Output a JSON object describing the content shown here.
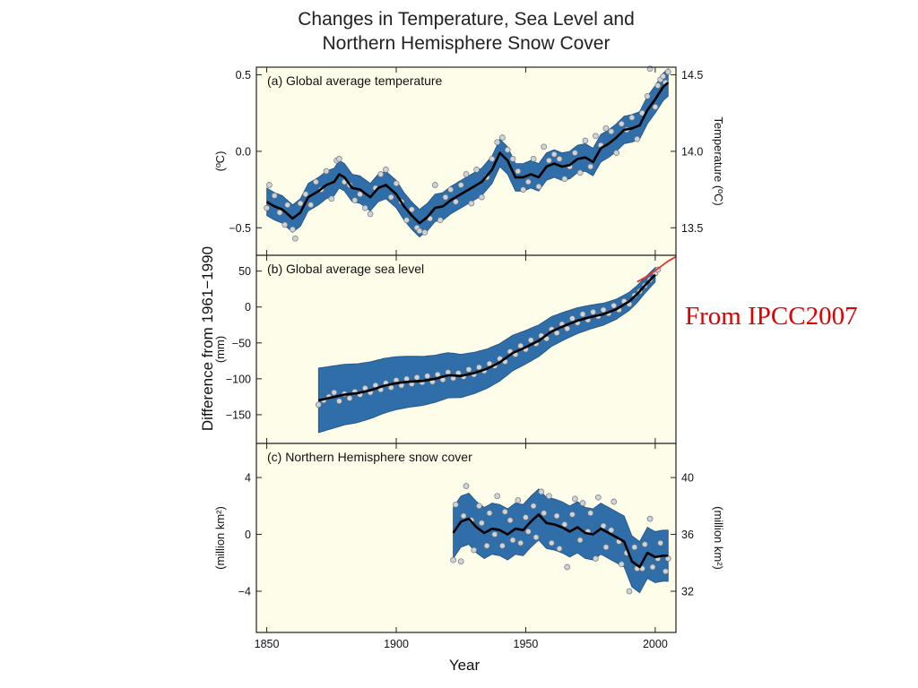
{
  "figure": {
    "title_line1": "Changes in Temperature, Sea Level and",
    "title_line2": "Northern Hemisphere Snow Cover",
    "shared_ylabel": "Difference from 1961−1990",
    "xlabel": "Year",
    "source_note": "From IPCC2007"
  },
  "colors": {
    "panel_bg": "#fdfde9",
    "band": "#2f6ea8",
    "band_edge": "#1f5184",
    "smooth_line": "#000000",
    "obs_point": "#cfd3d6",
    "tide_gauge_line": "#e8332e",
    "source_note": "#e00000"
  },
  "chart_data": [
    {
      "type": "line",
      "title": "(a) Global average temperature",
      "ylabel": "(ºC)",
      "ylabel_right": "Temperature (ºC)",
      "xlim": [
        1846,
        2008
      ],
      "ylim": [
        -0.68,
        0.55
      ],
      "x_ticks": [
        1850,
        1900,
        1950,
        2000
      ],
      "y_ticks": [
        0.5,
        0.0,
        -0.5
      ],
      "y_tick_labels": [
        "0.5",
        "0.0",
        "−0.5"
      ],
      "y_ticks_right": [
        14.5,
        14.0,
        13.5
      ],
      "y_tick_labels_right": [
        "14.5",
        "14.0",
        "13.5"
      ],
      "right_axis_offset": 14.0,
      "series": [
        {
          "role": "smoothed",
          "x": [
            1850,
            1853,
            1856,
            1860,
            1863,
            1866,
            1870,
            1873,
            1876,
            1878,
            1880,
            1883,
            1886,
            1890,
            1893,
            1896,
            1900,
            1903,
            1906,
            1909,
            1912,
            1915,
            1918,
            1921,
            1925,
            1929,
            1933,
            1937,
            1940,
            1943,
            1946,
            1949,
            1952,
            1955,
            1958,
            1961,
            1964,
            1967,
            1970,
            1973,
            1976,
            1979,
            1982,
            1985,
            1988,
            1991,
            1994,
            1997,
            2000,
            2003,
            2005
          ],
          "y": [
            -0.33,
            -0.36,
            -0.38,
            -0.44,
            -0.4,
            -0.3,
            -0.26,
            -0.22,
            -0.2,
            -0.15,
            -0.17,
            -0.24,
            -0.25,
            -0.3,
            -0.24,
            -0.22,
            -0.28,
            -0.36,
            -0.42,
            -0.47,
            -0.43,
            -0.37,
            -0.36,
            -0.32,
            -0.28,
            -0.24,
            -0.2,
            -0.12,
            -0.01,
            -0.06,
            -0.17,
            -0.17,
            -0.15,
            -0.17,
            -0.1,
            -0.08,
            -0.1,
            -0.09,
            -0.05,
            -0.04,
            -0.07,
            0.02,
            0.05,
            0.09,
            0.14,
            0.15,
            0.17,
            0.27,
            0.34,
            0.42,
            0.45
          ]
        }
      ],
      "uncertainty_halfwidth": 0.09,
      "observations": [
        [
          1850,
          -0.37
        ],
        [
          1851,
          -0.22
        ],
        [
          1853,
          -0.29
        ],
        [
          1855,
          -0.4
        ],
        [
          1857,
          -0.48
        ],
        [
          1858,
          -0.35
        ],
        [
          1860,
          -0.51
        ],
        [
          1861,
          -0.57
        ],
        [
          1863,
          -0.34
        ],
        [
          1865,
          -0.28
        ],
        [
          1867,
          -0.35
        ],
        [
          1869,
          -0.2
        ],
        [
          1871,
          -0.25
        ],
        [
          1873,
          -0.13
        ],
        [
          1875,
          -0.31
        ],
        [
          1877,
          -0.06
        ],
        [
          1878,
          -0.05
        ],
        [
          1880,
          -0.2
        ],
        [
          1882,
          -0.22
        ],
        [
          1884,
          -0.32
        ],
        [
          1886,
          -0.28
        ],
        [
          1888,
          -0.37
        ],
        [
          1890,
          -0.41
        ],
        [
          1892,
          -0.24
        ],
        [
          1894,
          -0.15
        ],
        [
          1896,
          -0.12
        ],
        [
          1898,
          -0.3
        ],
        [
          1900,
          -0.21
        ],
        [
          1902,
          -0.33
        ],
        [
          1904,
          -0.45
        ],
        [
          1906,
          -0.38
        ],
        [
          1908,
          -0.5
        ],
        [
          1909,
          -0.52
        ],
        [
          1911,
          -0.53
        ],
        [
          1913,
          -0.44
        ],
        [
          1915,
          -0.22
        ],
        [
          1917,
          -0.45
        ],
        [
          1919,
          -0.3
        ],
        [
          1921,
          -0.25
        ],
        [
          1923,
          -0.33
        ],
        [
          1925,
          -0.22
        ],
        [
          1927,
          -0.15
        ],
        [
          1929,
          -0.34
        ],
        [
          1931,
          -0.12
        ],
        [
          1933,
          -0.3
        ],
        [
          1935,
          -0.17
        ],
        [
          1937,
          -0.05
        ],
        [
          1939,
          0.06
        ],
        [
          1941,
          0.09
        ],
        [
          1943,
          0.01
        ],
        [
          1945,
          -0.05
        ],
        [
          1947,
          -0.13
        ],
        [
          1949,
          -0.25
        ],
        [
          1951,
          -0.2
        ],
        [
          1953,
          -0.05
        ],
        [
          1955,
          -0.23
        ],
        [
          1957,
          0.03
        ],
        [
          1959,
          -0.06
        ],
        [
          1961,
          -0.02
        ],
        [
          1963,
          -0.05
        ],
        [
          1965,
          -0.18
        ],
        [
          1967,
          -0.1
        ],
        [
          1969,
          -0.01
        ],
        [
          1971,
          -0.14
        ],
        [
          1973,
          0.07
        ],
        [
          1975,
          -0.1
        ],
        [
          1977,
          0.1
        ],
        [
          1979,
          0.04
        ],
        [
          1981,
          0.15
        ],
        [
          1983,
          0.13
        ],
        [
          1985,
          -0.01
        ],
        [
          1987,
          0.18
        ],
        [
          1989,
          0.14
        ],
        [
          1991,
          0.22
        ],
        [
          1993,
          0.08
        ],
        [
          1995,
          0.25
        ],
        [
          1997,
          0.36
        ],
        [
          1998,
          0.54
        ],
        [
          2000,
          0.29
        ],
        [
          2001,
          0.43
        ],
        [
          2002,
          0.47
        ],
        [
          2003,
          0.49
        ],
        [
          2004,
          0.45
        ],
        [
          2005,
          0.52
        ]
      ]
    },
    {
      "type": "line",
      "title": "(b) Global average sea level",
      "ylabel": "(mm)",
      "xlim": [
        1846,
        2008
      ],
      "ylim": [
        -190,
        72
      ],
      "x_ticks": [
        1850,
        1900,
        1950,
        2000
      ],
      "y_ticks": [
        50,
        0,
        -50,
        -100,
        -150
      ],
      "y_tick_labels": [
        "50",
        "0",
        "−50",
        "−100",
        "−150"
      ],
      "series": [
        {
          "role": "smoothed",
          "x": [
            1870,
            1875,
            1880,
            1885,
            1890,
            1895,
            1900,
            1905,
            1910,
            1915,
            1920,
            1925,
            1930,
            1935,
            1940,
            1945,
            1950,
            1955,
            1960,
            1965,
            1970,
            1975,
            1980,
            1985,
            1990,
            1993,
            1996,
            2000
          ],
          "y": [
            -130,
            -126,
            -122,
            -120,
            -116,
            -110,
            -106,
            -104,
            -103,
            -100,
            -95,
            -96,
            -92,
            -86,
            -77,
            -64,
            -56,
            -47,
            -34,
            -26,
            -19,
            -14,
            -10,
            -3,
            8,
            18,
            30,
            45
          ]
        },
        {
          "role": "satellite",
          "x": [
            1993,
            1996,
            1999,
            2002,
            2005,
            2008
          ],
          "y": [
            35,
            41,
            48,
            56,
            64,
            70
          ]
        }
      ],
      "uncertainty_start": 45,
      "uncertainty_end": 10,
      "observations": [
        [
          1870,
          -136
        ],
        [
          1872,
          -130
        ],
        [
          1874,
          -125
        ],
        [
          1876,
          -119
        ],
        [
          1878,
          -131
        ],
        [
          1880,
          -121
        ],
        [
          1882,
          -127
        ],
        [
          1884,
          -118
        ],
        [
          1886,
          -122
        ],
        [
          1888,
          -113
        ],
        [
          1890,
          -119
        ],
        [
          1892,
          -109
        ],
        [
          1894,
          -115
        ],
        [
          1896,
          -106
        ],
        [
          1898,
          -112
        ],
        [
          1900,
          -102
        ],
        [
          1902,
          -109
        ],
        [
          1904,
          -100
        ],
        [
          1906,
          -107
        ],
        [
          1908,
          -98
        ],
        [
          1910,
          -105
        ],
        [
          1912,
          -96
        ],
        [
          1914,
          -104
        ],
        [
          1916,
          -94
        ],
        [
          1918,
          -101
        ],
        [
          1920,
          -91
        ],
        [
          1922,
          -99
        ],
        [
          1924,
          -92
        ],
        [
          1926,
          -97
        ],
        [
          1928,
          -87
        ],
        [
          1930,
          -94
        ],
        [
          1932,
          -84
        ],
        [
          1934,
          -89
        ],
        [
          1936,
          -79
        ],
        [
          1938,
          -82
        ],
        [
          1940,
          -72
        ],
        [
          1942,
          -76
        ],
        [
          1944,
          -62
        ],
        [
          1946,
          -66
        ],
        [
          1948,
          -54
        ],
        [
          1950,
          -59
        ],
        [
          1952,
          -46
        ],
        [
          1954,
          -51
        ],
        [
          1956,
          -40
        ],
        [
          1958,
          -44
        ],
        [
          1960,
          -31
        ],
        [
          1962,
          -36
        ],
        [
          1964,
          -24
        ],
        [
          1966,
          -30
        ],
        [
          1968,
          -16
        ],
        [
          1970,
          -22
        ],
        [
          1972,
          -10
        ],
        [
          1974,
          -18
        ],
        [
          1976,
          -7
        ],
        [
          1978,
          -13
        ],
        [
          1980,
          -4
        ],
        [
          1982,
          -9
        ],
        [
          1984,
          2
        ],
        [
          1986,
          -4
        ],
        [
          1988,
          8
        ],
        [
          1990,
          4
        ],
        [
          1992,
          16
        ],
        [
          1994,
          22
        ],
        [
          1996,
          30
        ],
        [
          1998,
          38
        ],
        [
          2000,
          47
        ],
        [
          2001,
          52
        ]
      ]
    },
    {
      "type": "line",
      "title": "(c) Northern Hemisphere snow cover",
      "ylabel": "(million km²)",
      "ylabel_right": "(million km²)",
      "xlim": [
        1846,
        2008
      ],
      "ylim": [
        -6.9,
        6.4
      ],
      "x_ticks": [
        1850,
        1900,
        1950,
        2000
      ],
      "x_tick_labels": [
        "1850",
        "1900",
        "1950",
        "2000"
      ],
      "y_ticks": [
        4,
        0,
        -4
      ],
      "y_tick_labels": [
        "4",
        "0",
        "−4"
      ],
      "y_ticks_right": [
        40,
        36,
        32
      ],
      "y_tick_labels_right": [
        "40",
        "36",
        "32"
      ],
      "right_axis_offset": 36.0,
      "series": [
        {
          "role": "smoothed",
          "x": [
            1922,
            1925,
            1928,
            1931,
            1934,
            1937,
            1940,
            1943,
            1946,
            1949,
            1952,
            1955,
            1958,
            1961,
            1964,
            1967,
            1970,
            1973,
            1976,
            1979,
            1982,
            1985,
            1988,
            1991,
            1994,
            1997,
            2000,
            2003,
            2005
          ],
          "y": [
            0.1,
            0.9,
            1.1,
            0.5,
            0.1,
            0.4,
            0.3,
            0.0,
            0.4,
            0.3,
            0.9,
            1.4,
            0.8,
            0.7,
            0.5,
            0.2,
            0.5,
            0.1,
            0.0,
            0.4,
            0.1,
            -0.2,
            -0.5,
            -1.9,
            -2.3,
            -1.3,
            -1.6,
            -1.5,
            -1.5
          ]
        }
      ],
      "uncertainty_halfwidth": 1.8,
      "observations": [
        [
          1922,
          -1.8
        ],
        [
          1923,
          2.1
        ],
        [
          1925,
          -1.9
        ],
        [
          1926,
          1.3
        ],
        [
          1927,
          3.4
        ],
        [
          1929,
          1.0
        ],
        [
          1930,
          -1.1
        ],
        [
          1932,
          2.0
        ],
        [
          1933,
          0.8
        ],
        [
          1935,
          -0.8
        ],
        [
          1936,
          1.5
        ],
        [
          1938,
          0.0
        ],
        [
          1939,
          2.7
        ],
        [
          1941,
          -0.8
        ],
        [
          1942,
          1.6
        ],
        [
          1944,
          1.0
        ],
        [
          1945,
          -0.4
        ],
        [
          1947,
          2.4
        ],
        [
          1948,
          -0.6
        ],
        [
          1950,
          1.2
        ],
        [
          1951,
          0.2
        ],
        [
          1953,
          2.0
        ],
        [
          1954,
          -0.2
        ],
        [
          1956,
          3.0
        ],
        [
          1957,
          1.5
        ],
        [
          1959,
          2.7
        ],
        [
          1960,
          -0.6
        ],
        [
          1962,
          1.3
        ],
        [
          1963,
          -1.0
        ],
        [
          1965,
          0.7
        ],
        [
          1966,
          -2.3
        ],
        [
          1968,
          1.4
        ],
        [
          1969,
          2.5
        ],
        [
          1971,
          -0.4
        ],
        [
          1972,
          2.2
        ],
        [
          1974,
          0.2
        ],
        [
          1975,
          1.5
        ],
        [
          1977,
          -1.7
        ],
        [
          1978,
          2.6
        ],
        [
          1980,
          0.6
        ],
        [
          1981,
          -0.9
        ],
        [
          1983,
          0.3
        ],
        [
          1984,
          2.3
        ],
        [
          1986,
          -0.5
        ],
        [
          1987,
          -2.1
        ],
        [
          1989,
          -1.3
        ],
        [
          1990,
          -4.0
        ],
        [
          1992,
          -0.9
        ],
        [
          1993,
          -2.4
        ],
        [
          1995,
          -2.4
        ],
        [
          1996,
          -0.7
        ],
        [
          1998,
          1.1
        ],
        [
          1999,
          -2.3
        ],
        [
          2001,
          -1.7
        ],
        [
          2002,
          -0.6
        ],
        [
          2004,
          -2.6
        ],
        [
          2005,
          -1.7
        ]
      ]
    }
  ]
}
